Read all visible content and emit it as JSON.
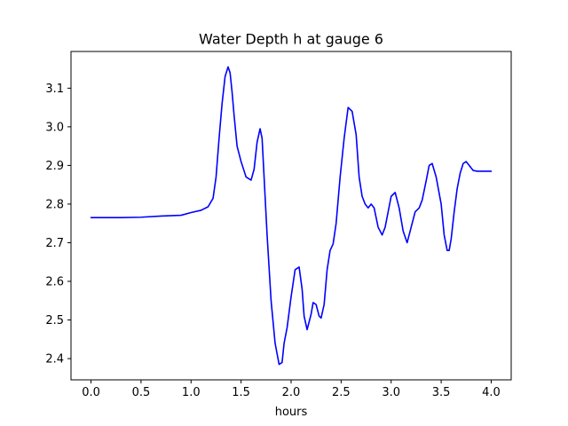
{
  "chart_data": {
    "type": "line",
    "title": "Water Depth h at gauge 6",
    "xlabel": "hours",
    "ylabel": "",
    "xlim": [
      -0.2,
      4.2
    ],
    "ylim": [
      2.345,
      3.195
    ],
    "xticks": [
      0.0,
      0.5,
      1.0,
      1.5,
      2.0,
      2.5,
      3.0,
      3.5,
      4.0
    ],
    "xtick_labels": [
      "0.0",
      "0.5",
      "1.0",
      "1.5",
      "2.0",
      "2.5",
      "3.0",
      "3.5",
      "4.0"
    ],
    "yticks": [
      2.4,
      2.5,
      2.6,
      2.7,
      2.8,
      2.9,
      3.0,
      3.1
    ],
    "ytick_labels": [
      "2.4",
      "2.5",
      "2.6",
      "2.7",
      "2.8",
      "2.9",
      "3.0",
      "3.1"
    ],
    "grid": false,
    "series": [
      {
        "color": "#0000ff",
        "x": [
          0.0,
          0.3,
          0.5,
          0.7,
          0.9,
          1.0,
          1.1,
          1.17,
          1.22,
          1.25,
          1.28,
          1.31,
          1.34,
          1.37,
          1.39,
          1.41,
          1.43,
          1.46,
          1.5,
          1.55,
          1.6,
          1.63,
          1.66,
          1.69,
          1.71,
          1.73,
          1.76,
          1.8,
          1.84,
          1.88,
          1.91,
          1.93,
          1.96,
          2.0,
          2.04,
          2.08,
          2.11,
          2.13,
          2.16,
          2.2,
          2.22,
          2.25,
          2.28,
          2.3,
          2.33,
          2.36,
          2.39,
          2.42,
          2.45,
          2.49,
          2.53,
          2.57,
          2.61,
          2.65,
          2.68,
          2.71,
          2.74,
          2.77,
          2.8,
          2.83,
          2.87,
          2.91,
          2.94,
          2.97,
          3.0,
          3.04,
          3.08,
          3.12,
          3.16,
          3.2,
          3.24,
          3.28,
          3.31,
          3.35,
          3.38,
          3.41,
          3.45,
          3.5,
          3.53,
          3.56,
          3.58,
          3.6,
          3.63,
          3.66,
          3.69,
          3.72,
          3.75,
          3.78,
          3.82,
          3.86,
          3.9,
          3.93,
          3.96,
          4.0
        ],
        "y": [
          2.765,
          2.765,
          2.766,
          2.769,
          2.771,
          2.778,
          2.784,
          2.793,
          2.815,
          2.87,
          2.97,
          3.06,
          3.13,
          3.155,
          3.14,
          3.09,
          3.03,
          2.95,
          2.91,
          2.87,
          2.862,
          2.89,
          2.96,
          2.995,
          2.97,
          2.87,
          2.72,
          2.55,
          2.44,
          2.385,
          2.39,
          2.44,
          2.48,
          2.56,
          2.63,
          2.637,
          2.58,
          2.51,
          2.475,
          2.515,
          2.545,
          2.54,
          2.51,
          2.505,
          2.54,
          2.63,
          2.68,
          2.697,
          2.75,
          2.87,
          2.97,
          3.05,
          3.04,
          2.98,
          2.87,
          2.82,
          2.8,
          2.79,
          2.8,
          2.79,
          2.74,
          2.72,
          2.74,
          2.78,
          2.82,
          2.83,
          2.79,
          2.73,
          2.7,
          2.74,
          2.78,
          2.79,
          2.81,
          2.86,
          2.9,
          2.905,
          2.87,
          2.8,
          2.72,
          2.68,
          2.68,
          2.71,
          2.78,
          2.84,
          2.88,
          2.905,
          2.91,
          2.9,
          2.887,
          2.885,
          2.885,
          2.885,
          2.885,
          2.885
        ]
      }
    ]
  }
}
